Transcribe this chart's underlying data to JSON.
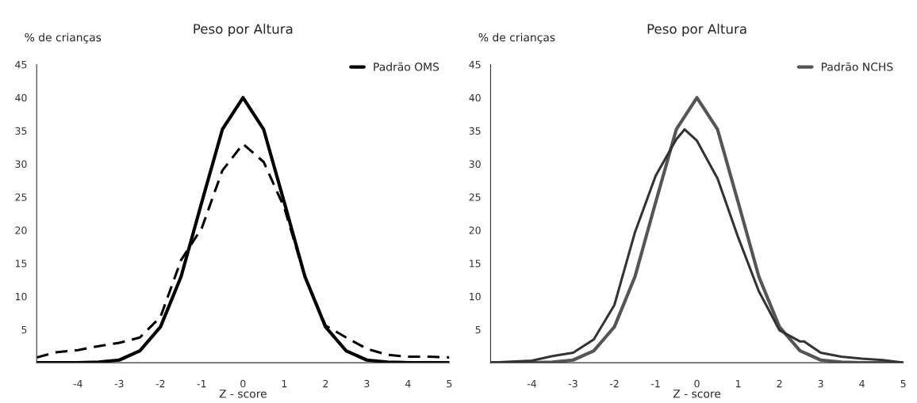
{
  "chart_data": [
    {
      "type": "line",
      "title": "Peso por Altura",
      "xlabel": "Z - score",
      "ylabel": "% de crianças",
      "xlim": [
        -5,
        5
      ],
      "ylim": [
        0,
        45
      ],
      "xticks": [
        {
          "value": -5,
          "label": null
        },
        -4,
        -3,
        -2,
        -1,
        0,
        1,
        2,
        3,
        4,
        5
      ],
      "yticks": [
        5,
        10,
        15,
        20,
        25,
        30,
        35,
        40,
        45
      ],
      "grid": false,
      "legend": "top right",
      "marker": "none",
      "x": [
        -5,
        -4.5,
        -4,
        -3.5,
        -3,
        -2.5,
        -2,
        -1.5,
        -1,
        -0.5,
        0,
        0.5,
        1,
        1.5,
        2,
        2.5,
        3,
        3.5,
        4,
        4.5,
        5
      ],
      "series": [
        {
          "name": "Padrão OMS",
          "color": "#000000",
          "line_style": "solid",
          "values": [
            0,
            0,
            0,
            0.1,
            0.4,
            1.8,
            5.4,
            13,
            24.2,
            35.2,
            40,
            35.2,
            24.2,
            13,
            5.4,
            1.8,
            0.4,
            0.1,
            0,
            0,
            0
          ]
        },
        {
          "color": "#000000",
          "line_style": "dashed",
          "values": [
            0.8,
            1.6,
            1.9,
            2.5,
            3,
            3.8,
            6.9,
            15.5,
            20.3,
            29,
            33,
            30.3,
            23.4,
            13,
            5.6,
            3.8,
            2.1,
            1.2,
            0.9,
            0.9,
            0.8
          ]
        }
      ]
    },
    {
      "type": "line",
      "title": "Peso por Altura",
      "xlabel": "Z - score",
      "ylabel": "% de crianças",
      "xlim": [
        -5,
        5
      ],
      "ylim": [
        0,
        45
      ],
      "xticks": [
        {
          "value": -5,
          "label": null
        },
        -4,
        -3,
        -2,
        -1,
        0,
        1,
        2,
        3,
        4,
        5
      ],
      "yticks": [
        5,
        10,
        15,
        20,
        25,
        30,
        35,
        40,
        45
      ],
      "grid": false,
      "legend": "top right",
      "marker": "none",
      "series": [
        {
          "name": "Padrão NCHS",
          "color": "#555555",
          "line_style": "solid",
          "x": [
            -5,
            -4.5,
            -4,
            -3.5,
            -3,
            -2.5,
            -2,
            -1.5,
            -1,
            -0.5,
            0,
            0.5,
            1,
            1.5,
            2,
            2.5,
            3,
            3.5,
            4,
            4.5,
            5
          ],
          "values": [
            0,
            0,
            0,
            0.1,
            0.4,
            1.8,
            5.4,
            13,
            24.2,
            35.2,
            40,
            35.2,
            24.2,
            13,
            5.4,
            1.8,
            0.4,
            0.1,
            0,
            0,
            0
          ]
        },
        {
          "color": "#333333",
          "line_style": "solid",
          "x": [
            -5,
            -4,
            -3.5,
            -3,
            -2.5,
            -2,
            -1.5,
            -1,
            -0.5,
            -0.3,
            0,
            0.5,
            1,
            1.5,
            2,
            2.5,
            2.6,
            3,
            3.5,
            4,
            4.5,
            5
          ],
          "values": [
            0,
            0.3,
            1,
            1.5,
            3.5,
            8.7,
            19.7,
            28.2,
            33.7,
            35.2,
            33.5,
            27.8,
            18.9,
            10.8,
            4.9,
            3.2,
            3.2,
            1.5,
            0.9,
            0.6,
            0.4,
            0
          ]
        }
      ]
    }
  ]
}
